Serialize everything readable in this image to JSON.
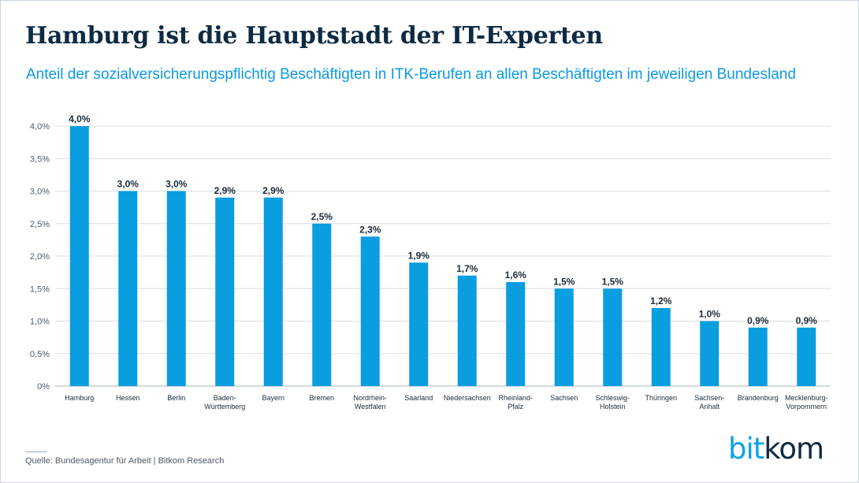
{
  "header": {
    "title": "Hamburg ist die Hauptstadt der IT-Experten",
    "subtitle": "Anteil der sozialversicherungspflichtig Beschäftigten in ITK-Berufen an allen Beschäftigten im jeweiligen Bundesland"
  },
  "footer": {
    "source": "Quelle: Bundesagentur für Arbeit | Bitkom Research",
    "logo_part1": "bit",
    "logo_part2": "kom"
  },
  "colors": {
    "bar": "#0a9de0",
    "title": "#0d2b42",
    "subtitle": "#0b9be0",
    "grid": "#d9dee4"
  },
  "chart_data": {
    "type": "bar",
    "categories": [
      [
        "Hamburg"
      ],
      [
        "Hessen"
      ],
      [
        "Berlin"
      ],
      [
        "Baden-",
        "Württemberg"
      ],
      [
        "Bayern"
      ],
      [
        "Bremen"
      ],
      [
        "Nordrhein-",
        "Westfalen"
      ],
      [
        "Saarland"
      ],
      [
        "Niedersachsen"
      ],
      [
        "Rheinland-",
        "Pfalz"
      ],
      [
        "Sachsen"
      ],
      [
        "Schleswig-",
        "Holstein"
      ],
      [
        "Thüringen"
      ],
      [
        "Sachsen-",
        "Anhalt"
      ],
      [
        "Brandenburg"
      ],
      [
        "Mecklenburg-",
        "Vorpommern"
      ]
    ],
    "values": [
      4.0,
      3.0,
      3.0,
      2.9,
      2.9,
      2.5,
      2.3,
      1.9,
      1.7,
      1.6,
      1.5,
      1.5,
      1.2,
      1.0,
      0.9,
      0.9
    ],
    "value_labels": [
      "4,0%",
      "3,0%",
      "3,0%",
      "2,9%",
      "2,9%",
      "2,5%",
      "2,3%",
      "1,9%",
      "1,7%",
      "1,6%",
      "1,5%",
      "1,5%",
      "1,2%",
      "1,0%",
      "0,9%",
      "0,9%"
    ],
    "yticks": [
      0,
      0.5,
      1.0,
      1.5,
      2.0,
      2.5,
      3.0,
      3.5,
      4.0
    ],
    "ytick_labels": [
      "0%",
      "0,5%",
      "1,0%",
      "1,5%",
      "2,0%",
      "2,5%",
      "3,0%",
      "3,5%",
      "4,0%"
    ],
    "ylim": [
      0,
      4.0
    ],
    "grid": true,
    "legend": "none"
  }
}
